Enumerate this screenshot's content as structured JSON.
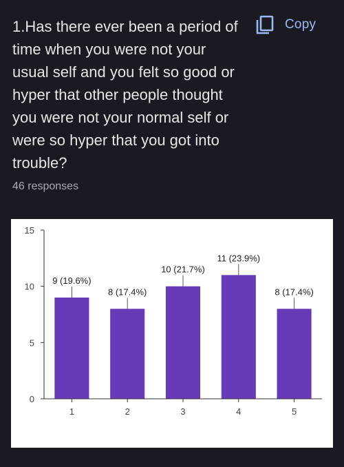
{
  "question": {
    "text": "1.Has there ever been a period of time when you were not your usual self and you felt so good or hyper that other people thought you were not your normal self or were so hyper that you got into trouble?"
  },
  "copy": {
    "label": "Copy",
    "icon": "copy-icon"
  },
  "responses": {
    "text": "46 responses"
  },
  "colors": {
    "bar": "#673ab7",
    "accent": "#9fb8f5",
    "background": "#1a1b22"
  },
  "chart_data": {
    "type": "bar",
    "categories": [
      "1",
      "2",
      "3",
      "4",
      "5"
    ],
    "values": [
      9,
      8,
      10,
      11,
      8
    ],
    "data_labels": [
      "9 (19.6%)",
      "8 (17.4%)",
      "10 (21.7%)",
      "11 (23.9%)",
      "8 (17.4%)"
    ],
    "ylim": [
      0,
      15
    ],
    "yticks": [
      0,
      5,
      10,
      15
    ],
    "title": "",
    "xlabel": "",
    "ylabel": "",
    "grid": false
  }
}
